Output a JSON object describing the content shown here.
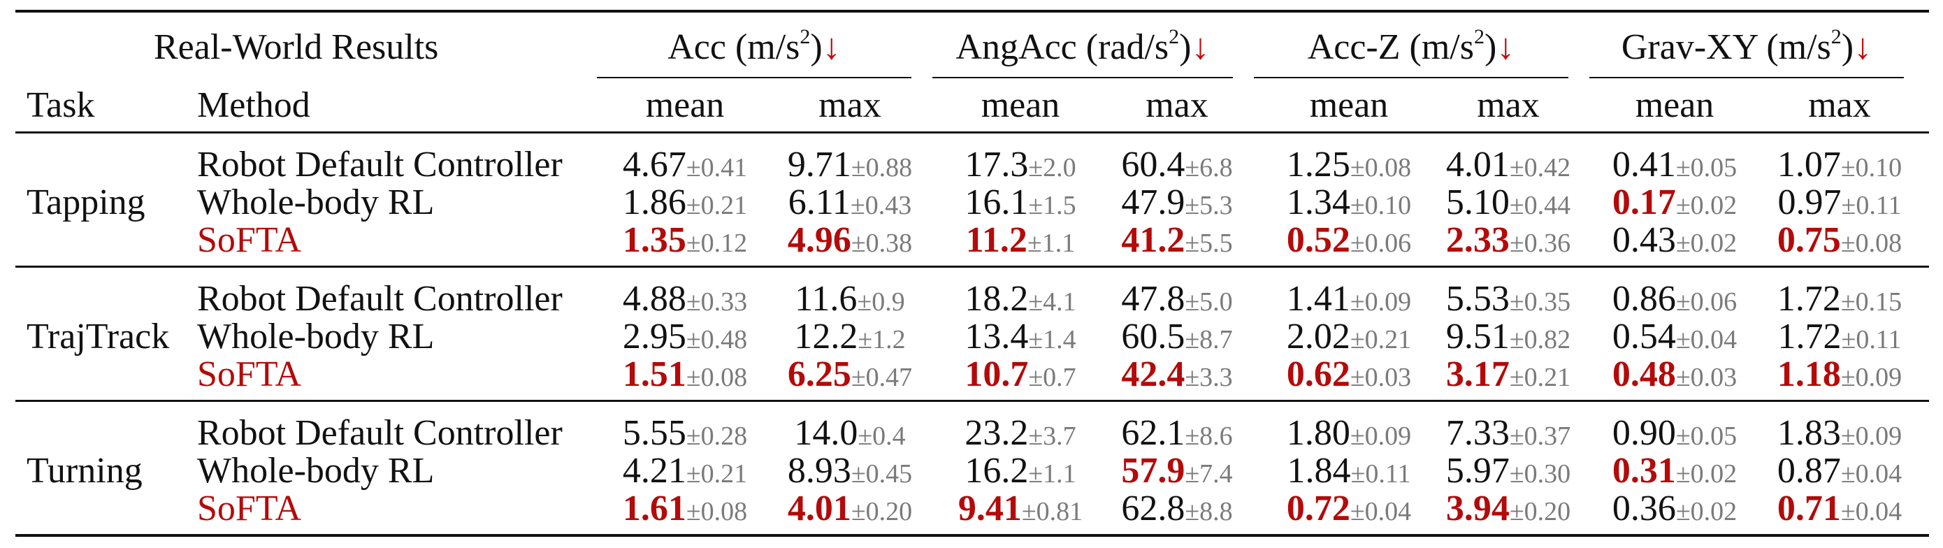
{
  "table": {
    "corner_title": "Real-World Results",
    "task_header": "Task",
    "method_header": "Method",
    "metric_groups": [
      {
        "name": "Acc",
        "unit_pre": "(m/s",
        "unit_sup": "2",
        "unit_post": ")",
        "arrow": "↓"
      },
      {
        "name": "AngAcc",
        "unit_pre": "(rad/s",
        "unit_sup": "2",
        "unit_post": ")",
        "arrow": "↓"
      },
      {
        "name": "Acc-Z",
        "unit_pre": "(m/s",
        "unit_sup": "2",
        "unit_post": ")",
        "arrow": "↓"
      },
      {
        "name": "Grav-XY",
        "unit_pre": "(m/s",
        "unit_sup": "2",
        "unit_post": ")",
        "arrow": "↓"
      }
    ],
    "sub_headers": [
      "mean",
      "max",
      "mean",
      "max",
      "mean",
      "max",
      "mean",
      "max"
    ],
    "tasks": [
      {
        "name": "Tapping",
        "rows": [
          {
            "method": "Robot Default Controller",
            "highlight": false,
            "cells": [
              {
                "v": "4.67",
                "sd": "±0.41",
                "best": false
              },
              {
                "v": "9.71",
                "sd": "±0.88",
                "best": false
              },
              {
                "v": "17.3",
                "sd": "±2.0",
                "best": false
              },
              {
                "v": "60.4",
                "sd": "±6.8",
                "best": false
              },
              {
                "v": "1.25",
                "sd": "±0.08",
                "best": false
              },
              {
                "v": "4.01",
                "sd": "±0.42",
                "best": false
              },
              {
                "v": "0.41",
                "sd": "±0.05",
                "best": false
              },
              {
                "v": "1.07",
                "sd": "±0.10",
                "best": false
              }
            ]
          },
          {
            "method": "Whole-body RL",
            "highlight": false,
            "cells": [
              {
                "v": "1.86",
                "sd": "±0.21",
                "best": false
              },
              {
                "v": "6.11",
                "sd": "±0.43",
                "best": false
              },
              {
                "v": "16.1",
                "sd": "±1.5",
                "best": false
              },
              {
                "v": "47.9",
                "sd": "±5.3",
                "best": false
              },
              {
                "v": "1.34",
                "sd": "±0.10",
                "best": false
              },
              {
                "v": "5.10",
                "sd": "±0.44",
                "best": false
              },
              {
                "v": "0.17",
                "sd": "±0.02",
                "best": true
              },
              {
                "v": "0.97",
                "sd": "±0.11",
                "best": false
              }
            ]
          },
          {
            "method": "SoFTA",
            "highlight": true,
            "cells": [
              {
                "v": "1.35",
                "sd": "±0.12",
                "best": true
              },
              {
                "v": "4.96",
                "sd": "±0.38",
                "best": true
              },
              {
                "v": "11.2",
                "sd": "±1.1",
                "best": true
              },
              {
                "v": "41.2",
                "sd": "±5.5",
                "best": true
              },
              {
                "v": "0.52",
                "sd": "±0.06",
                "best": true
              },
              {
                "v": "2.33",
                "sd": "±0.36",
                "best": true
              },
              {
                "v": "0.43",
                "sd": "±0.02",
                "best": false
              },
              {
                "v": "0.75",
                "sd": "±0.08",
                "best": true
              }
            ]
          }
        ]
      },
      {
        "name": "TrajTrack",
        "rows": [
          {
            "method": "Robot Default Controller",
            "highlight": false,
            "cells": [
              {
                "v": "4.88",
                "sd": "±0.33",
                "best": false
              },
              {
                "v": "11.6",
                "sd": "±0.9",
                "best": false
              },
              {
                "v": "18.2",
                "sd": "±4.1",
                "best": false
              },
              {
                "v": "47.8",
                "sd": "±5.0",
                "best": false
              },
              {
                "v": "1.41",
                "sd": "±0.09",
                "best": false
              },
              {
                "v": "5.53",
                "sd": "±0.35",
                "best": false
              },
              {
                "v": "0.86",
                "sd": "±0.06",
                "best": false
              },
              {
                "v": "1.72",
                "sd": "±0.15",
                "best": false
              }
            ]
          },
          {
            "method": "Whole-body RL",
            "highlight": false,
            "cells": [
              {
                "v": "2.95",
                "sd": "±0.48",
                "best": false
              },
              {
                "v": "12.2",
                "sd": "±1.2",
                "best": false
              },
              {
                "v": "13.4",
                "sd": "±1.4",
                "best": false
              },
              {
                "v": "60.5",
                "sd": "±8.7",
                "best": false
              },
              {
                "v": "2.02",
                "sd": "±0.21",
                "best": false
              },
              {
                "v": "9.51",
                "sd": "±0.82",
                "best": false
              },
              {
                "v": "0.54",
                "sd": "±0.04",
                "best": false
              },
              {
                "v": "1.72",
                "sd": "±0.11",
                "best": false
              }
            ]
          },
          {
            "method": "SoFTA",
            "highlight": true,
            "cells": [
              {
                "v": "1.51",
                "sd": "±0.08",
                "best": true
              },
              {
                "v": "6.25",
                "sd": "±0.47",
                "best": true
              },
              {
                "v": "10.7",
                "sd": "±0.7",
                "best": true
              },
              {
                "v": "42.4",
                "sd": "±3.3",
                "best": true
              },
              {
                "v": "0.62",
                "sd": "±0.03",
                "best": true
              },
              {
                "v": "3.17",
                "sd": "±0.21",
                "best": true
              },
              {
                "v": "0.48",
                "sd": "±0.03",
                "best": true
              },
              {
                "v": "1.18",
                "sd": "±0.09",
                "best": true
              }
            ]
          }
        ]
      },
      {
        "name": "Turning",
        "rows": [
          {
            "method": "Robot Default Controller",
            "highlight": false,
            "cells": [
              {
                "v": "5.55",
                "sd": "±0.28",
                "best": false
              },
              {
                "v": "14.0",
                "sd": "±0.4",
                "best": false
              },
              {
                "v": "23.2",
                "sd": "±3.7",
                "best": false
              },
              {
                "v": "62.1",
                "sd": "±8.6",
                "best": false
              },
              {
                "v": "1.80",
                "sd": "±0.09",
                "best": false
              },
              {
                "v": "7.33",
                "sd": "±0.37",
                "best": false
              },
              {
                "v": "0.90",
                "sd": "±0.05",
                "best": false
              },
              {
                "v": "1.83",
                "sd": "±0.09",
                "best": false
              }
            ]
          },
          {
            "method": "Whole-body RL",
            "highlight": false,
            "cells": [
              {
                "v": "4.21",
                "sd": "±0.21",
                "best": false
              },
              {
                "v": "8.93",
                "sd": "±0.45",
                "best": false
              },
              {
                "v": "16.2",
                "sd": "±1.1",
                "best": false
              },
              {
                "v": "57.9",
                "sd": "±7.4",
                "best": true
              },
              {
                "v": "1.84",
                "sd": "±0.11",
                "best": false
              },
              {
                "v": "5.97",
                "sd": "±0.30",
                "best": false
              },
              {
                "v": "0.31",
                "sd": "±0.02",
                "best": true
              },
              {
                "v": "0.87",
                "sd": "±0.04",
                "best": false
              }
            ]
          },
          {
            "method": "SoFTA",
            "highlight": true,
            "cells": [
              {
                "v": "1.61",
                "sd": "±0.08",
                "best": true
              },
              {
                "v": "4.01",
                "sd": "±0.20",
                "best": true
              },
              {
                "v": "9.41",
                "sd": "±0.81",
                "best": true
              },
              {
                "v": "62.8",
                "sd": "±8.8",
                "best": false
              },
              {
                "v": "0.72",
                "sd": "±0.04",
                "best": true
              },
              {
                "v": "3.94",
                "sd": "±0.20",
                "best": true
              },
              {
                "v": "0.36",
                "sd": "±0.02",
                "best": false
              },
              {
                "v": "0.71",
                "sd": "±0.04",
                "best": true
              }
            ]
          }
        ]
      }
    ]
  }
}
